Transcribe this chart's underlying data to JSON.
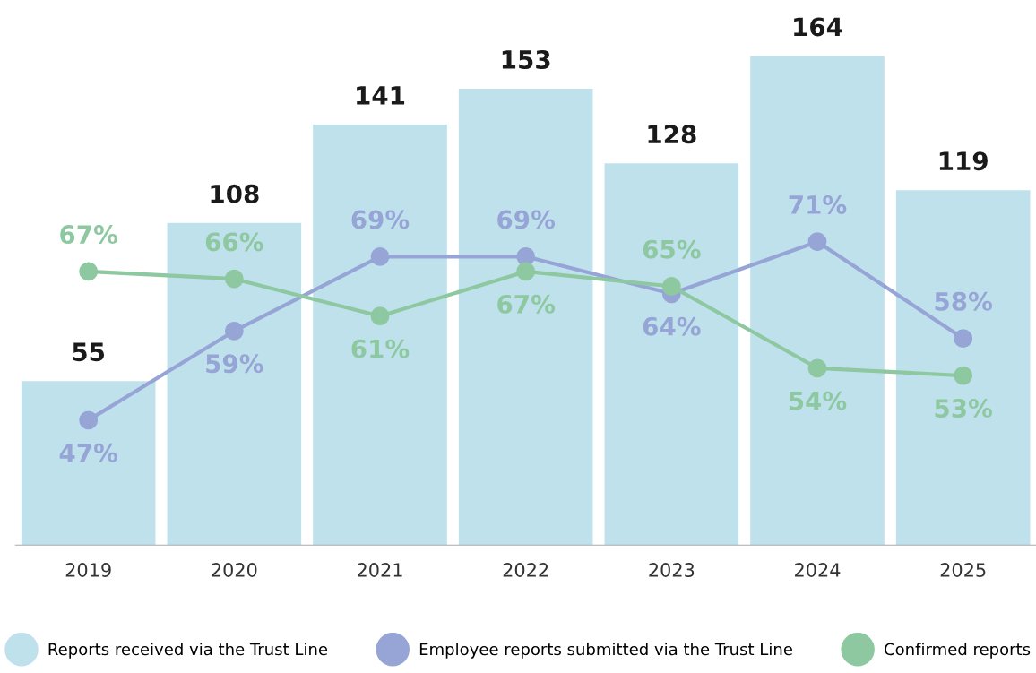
{
  "chart_data": {
    "type": "bar",
    "categories": [
      "2019",
      "2020",
      "2021",
      "2022",
      "2023",
      "2024",
      "2025"
    ],
    "series": [
      {
        "name": "Reports received via the Trust Line",
        "color": "#bfe1ec",
        "values": [
          55,
          108,
          141,
          153,
          128,
          164,
          119
        ]
      },
      {
        "name": "Employee reports submitted via the Trust Line",
        "type": "line",
        "axis": "y2",
        "color": "#96a5d6",
        "values": [
          47,
          59,
          69,
          69,
          64,
          71,
          58
        ],
        "value_labels": [
          "47%",
          "59%",
          "69%",
          "69%",
          "64%",
          "71%",
          "58%"
        ]
      },
      {
        "name": "Confirmed reports",
        "type": "line",
        "axis": "y2",
        "color": "#8ec8a0",
        "values": [
          67,
          66,
          61,
          67,
          65,
          54,
          53
        ],
        "value_labels": [
          "67%",
          "66%",
          "61%",
          "67%",
          "65%",
          "54%",
          "53%"
        ]
      }
    ],
    "data_labels": true,
    "marker": "circle",
    "grid": false,
    "legend": "bottom"
  }
}
